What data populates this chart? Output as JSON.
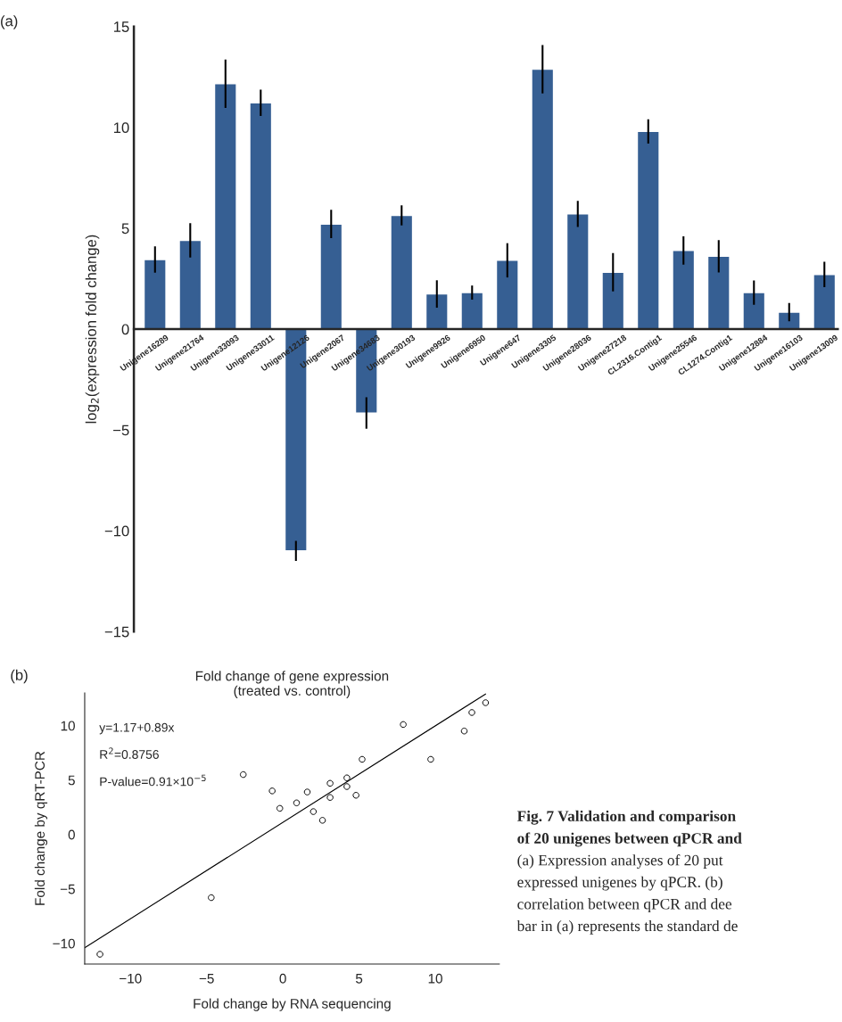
{
  "chart_data": [
    {
      "type": "bar",
      "ylabel": "log$_{2}$(expression fold change)",
      "annotations": [
        "(a)"
      ],
      "categories": [
        "Unigene16289",
        "Unigene21764",
        "Unigene33093",
        "Unigene33011",
        "Unigene12126",
        "Unigene2067",
        "Unigene34683",
        "Unigene30193",
        "Unigene9926",
        "Unigene6950",
        "Unigene647",
        "Unigene3305",
        "Unigene28036",
        "Unigene27218",
        "CL2316.Contig1",
        "Unigene25546",
        "CL1274.Contig1",
        "Unigene12884",
        "Unigene16103",
        "Unigene13009"
      ],
      "values": [
        3.45,
        4.4,
        12.17,
        11.22,
        -11.0,
        5.21,
        -4.16,
        5.64,
        1.74,
        1.81,
        3.41,
        12.89,
        5.71,
        2.82,
        9.8,
        3.9,
        3.61,
        1.81,
        0.84,
        2.71
      ],
      "errors": [
        0.65,
        0.85,
        1.2,
        0.65,
        0.5,
        0.7,
        0.78,
        0.5,
        0.68,
        0.35,
        0.85,
        1.2,
        0.65,
        0.95,
        0.6,
        0.7,
        0.8,
        0.6,
        0.45,
        0.63
      ],
      "color": "#365f93",
      "ylim": [
        -15,
        15
      ],
      "yticks": [
        {
          "value": -15,
          "label": "−15"
        },
        {
          "value": -10,
          "label": "−10"
        },
        {
          "value": -5,
          "label": "−5"
        },
        0,
        5,
        10,
        15
      ],
      "grid": false
    },
    {
      "type": "scatter",
      "title": "Fold change of gene expression\n(treated vs. control)",
      "xlabel": "Fold change by RNA sequencing",
      "ylabel": "Fold change by qRT-PCR",
      "annotations": [
        "(b)",
        "y=1.17+0.89x",
        "R$^{2}$=0.8756",
        "P-value=0.91×10$^{−5}$",
        "Fig. 7 Validation and comparison",
        "of 20 unigenes between qPCR and",
        "(a) Expression analyses of 20 put",
        "expressed unigenes by qPCR. (b)",
        "correlation between qPCR and dee",
        "bar in (a) represents the standard de"
      ],
      "series": [
        {
          "type": "scatter",
          "color": "#000000",
          "marker": "circle",
          "x": [
            13.3,
            12.4,
            7.9,
            11.9,
            9.7,
            5.2,
            -2.6,
            4.2,
            3.1,
            4.2,
            -0.7,
            1.6,
            4.8,
            3.1,
            0.9,
            -0.2,
            2.0,
            2.6,
            -4.7,
            -12.0
          ],
          "values": [
            12.1,
            11.2,
            10.1,
            9.5,
            6.9,
            6.9,
            5.5,
            5.2,
            4.7,
            4.4,
            4.0,
            3.9,
            3.6,
            3.4,
            2.9,
            2.4,
            2.1,
            1.3,
            -5.8,
            -11.0
          ]
        },
        {
          "type": "line",
          "color": "#000000",
          "line_style": "solid",
          "x": [
            -13.0,
            13.3
          ],
          "values": [
            -10.4,
            12.9
          ]
        }
      ],
      "xlim": [
        -13.0,
        14.2
      ],
      "ylim": [
        -11.9,
        13.0
      ],
      "xticks": [
        {
          "value": -10,
          "label": "−10"
        },
        {
          "value": -5,
          "label": "−5"
        },
        0,
        5,
        10
      ],
      "yticks": [
        {
          "value": -10,
          "label": "−10"
        },
        {
          "value": -5,
          "label": "−5"
        },
        0,
        5,
        10
      ],
      "grid": false
    }
  ]
}
